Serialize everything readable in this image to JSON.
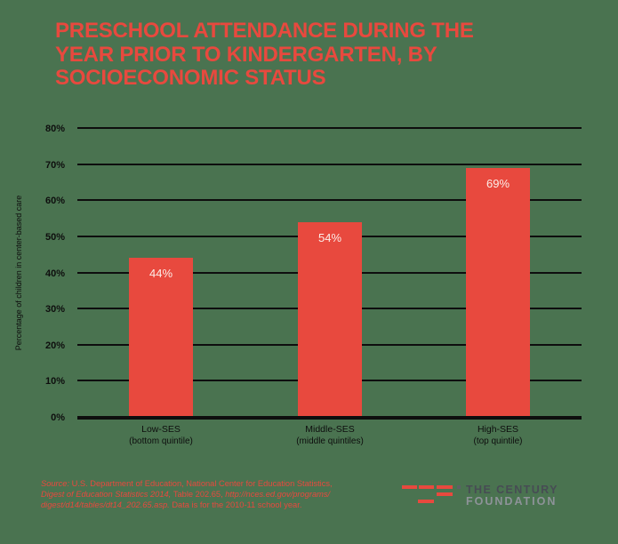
{
  "colors": {
    "background": "#4A7350",
    "accent_red": "#E8493E",
    "text_black": "#0E0E0E",
    "bar_value_label": "#FCEDE8",
    "logo_text_dark": "#474C54",
    "logo_text_light": "#8E9399",
    "logo_square_gray": "#5C6166"
  },
  "title": {
    "line1": "PRESCHOOL ATTENDANCE DURING THE",
    "line2": "YEAR PRIOR TO KINDERGARTEN, BY",
    "line3": "SOCIOECONOMIC STATUS"
  },
  "chart_data": {
    "type": "bar",
    "title": "Preschool attendance during the year prior to kindergarten, by socioeconomic status",
    "xlabel": "",
    "ylabel": "Percentage of children in center-based care",
    "ylim": [
      0,
      80
    ],
    "ytick_interval": 10,
    "ytick_labels": [
      "0%",
      "10%",
      "20%",
      "30%",
      "40%",
      "50%",
      "60%",
      "70%",
      "80%"
    ],
    "grid": true,
    "legend": "none",
    "categories": [
      "Low-SES",
      "Middle-SES",
      "High-SES"
    ],
    "category_sublabels": [
      "(bottom quintile)",
      "(middle quintiles)",
      "(top quintile)"
    ],
    "values": [
      44,
      54,
      69
    ],
    "value_labels": [
      "44%",
      "54%",
      "69%"
    ],
    "bar_color": "#E8493E"
  },
  "source": {
    "lines": [
      {
        "segments": [
          {
            "text": "Source: ",
            "italic": true
          },
          {
            "text": "U.S. Department of Education, National Center for Education Statistics,",
            "italic": false
          }
        ]
      },
      {
        "segments": [
          {
            "text": "Digest of Education Statistics 2014, ",
            "italic": true
          },
          {
            "text": "Table 202.65, ",
            "italic": false
          },
          {
            "text": "http://nces.ed.gov/programs/",
            "italic": true
          }
        ]
      },
      {
        "segments": [
          {
            "text": "digest/d14/tables/dt14_202.65.asp.",
            "italic": true
          },
          {
            "text": " Data is for the 2010-11 school year.",
            "italic": false
          }
        ]
      }
    ]
  },
  "logo": {
    "name_line1": "THE CENTURY",
    "name_line2": "FOUNDATION"
  }
}
